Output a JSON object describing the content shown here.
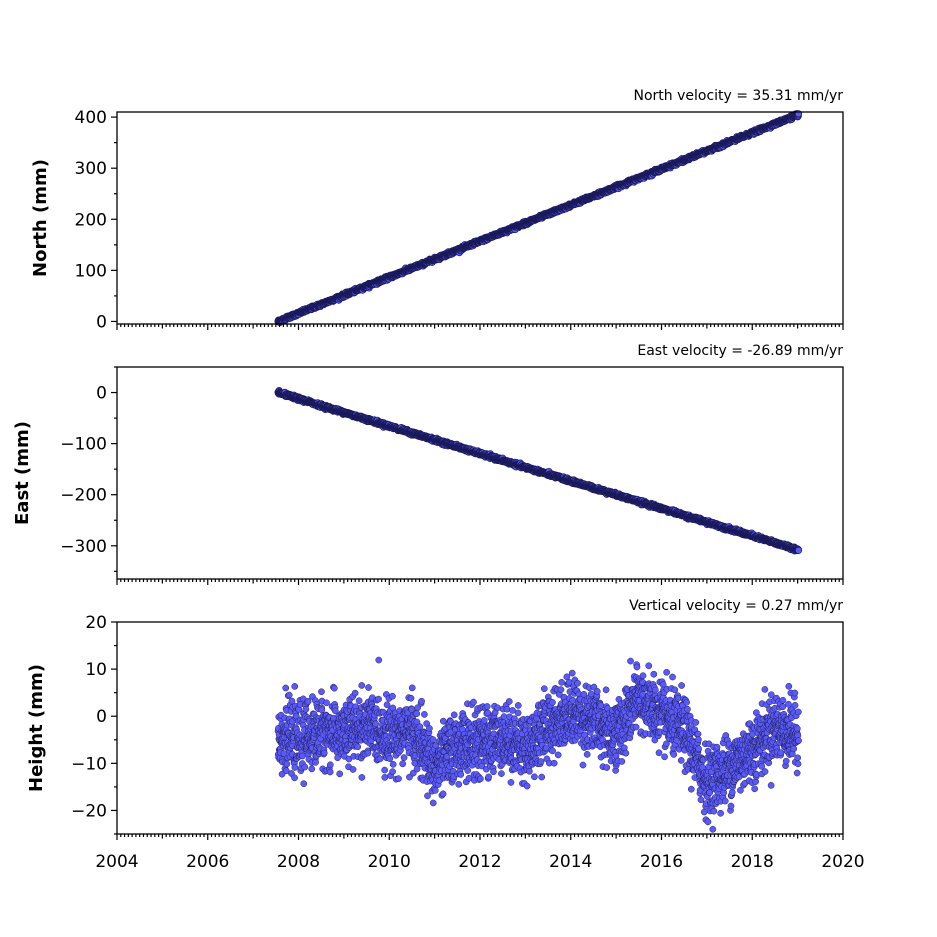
{
  "x_axis": {
    "ticks": [
      "2004",
      "2006",
      "2008",
      "2010",
      "2012",
      "2014",
      "2016",
      "2018",
      "2020"
    ],
    "range": [
      2004,
      2020
    ]
  },
  "panels": [
    {
      "id": "north",
      "ylabel": "North (mm)",
      "velocity_label": "North velocity = 35.31 mm/yr",
      "yticks": [
        "0",
        "100",
        "200",
        "300",
        "400"
      ],
      "ytick_values": [
        0,
        100,
        200,
        300,
        400
      ],
      "ylim": [
        -5,
        410
      ]
    },
    {
      "id": "east",
      "ylabel": "East (mm)",
      "velocity_label": "East velocity = -26.89 mm/yr",
      "yticks": [
        "0",
        "−100",
        "−200",
        "−300"
      ],
      "ytick_values": [
        0,
        -100,
        -200,
        -300
      ],
      "ylim": [
        -365,
        50
      ]
    },
    {
      "id": "height",
      "ylabel": "Height (mm)",
      "velocity_label": "Vertical velocity = 0.27 mm/yr",
      "yticks": [
        "20",
        "10",
        "0",
        "−10",
        "−20"
      ],
      "ytick_values": [
        20,
        10,
        0,
        -10,
        -20
      ],
      "ylim": [
        -25,
        20
      ]
    }
  ],
  "chart_data": [
    {
      "type": "scatter",
      "title": "North velocity = 35.31 mm/yr",
      "ylabel": "North (mm)",
      "xlim": [
        2004,
        2020
      ],
      "ylim": [
        -5,
        410
      ],
      "x_start": 2007.55,
      "x_end": 2019.02,
      "y_start": 0,
      "y_end": 405,
      "velocity_mm_per_yr": 35.31,
      "color": "#5a5afa"
    },
    {
      "type": "scatter",
      "title": "East velocity = -26.89 mm/yr",
      "ylabel": "East (mm)",
      "xlim": [
        2004,
        2020
      ],
      "ylim": [
        -365,
        50
      ],
      "x_start": 2007.55,
      "x_end": 2019.02,
      "y_start": 0,
      "y_end": -308,
      "velocity_mm_per_yr": -26.89,
      "color": "#5a5afa"
    },
    {
      "type": "scatter",
      "title": "Vertical velocity = 0.27 mm/yr",
      "ylabel": "Height (mm)",
      "xlim": [
        2004,
        2020
      ],
      "ylim": [
        -25,
        20
      ],
      "x_start": 2007.55,
      "x_end": 2019.02,
      "velocity_mm_per_yr": 0.27,
      "seasonal_mean": [
        [
          2007.5,
          -4
        ],
        [
          2008.0,
          -5
        ],
        [
          2008.5,
          -3
        ],
        [
          2009.0,
          -4
        ],
        [
          2009.5,
          -2
        ],
        [
          2010.0,
          -4
        ],
        [
          2010.5,
          -3
        ],
        [
          2011.0,
          -11
        ],
        [
          2011.5,
          -6
        ],
        [
          2012.0,
          -6
        ],
        [
          2012.5,
          -4
        ],
        [
          2013.0,
          -7
        ],
        [
          2013.5,
          -2
        ],
        [
          2014.0,
          1
        ],
        [
          2014.5,
          -1
        ],
        [
          2015.0,
          -4
        ],
        [
          2015.5,
          4
        ],
        [
          2016.0,
          0
        ],
        [
          2016.5,
          -3
        ],
        [
          2017.0,
          -14
        ],
        [
          2017.5,
          -11
        ],
        [
          2018.0,
          -7
        ],
        [
          2018.5,
          -2
        ],
        [
          2019.0,
          -4
        ]
      ],
      "scatter_sd": 3.5,
      "color": "#5a5afa"
    }
  ]
}
